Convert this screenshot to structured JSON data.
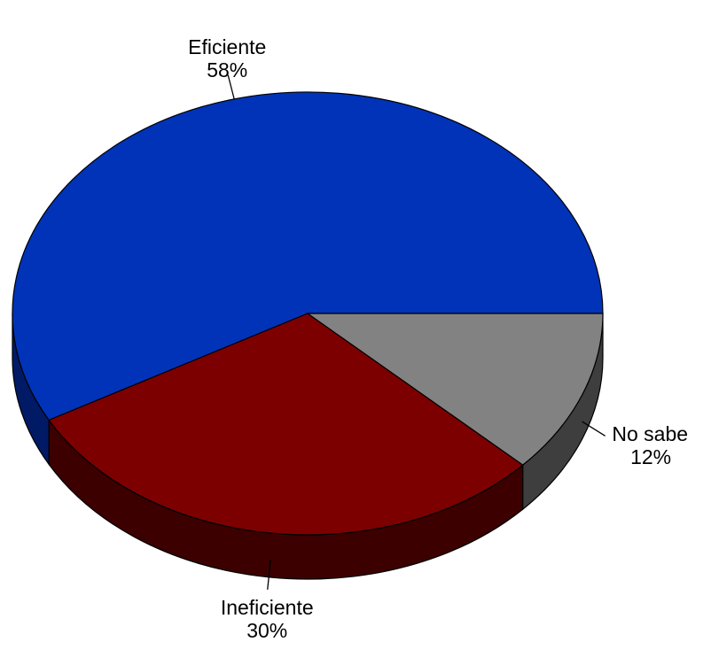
{
  "chart_data": {
    "type": "pie",
    "style": "3d",
    "slices": [
      {
        "name": "Eficiente",
        "value": 58,
        "value_label": "58%",
        "color": "#0033b8",
        "side_color": "#001a66"
      },
      {
        "name": "Ineficiente",
        "value": 30,
        "value_label": "30%",
        "color": "#7d0000",
        "side_color": "#3c0000"
      },
      {
        "name": "No sabe",
        "value": 12,
        "value_label": "12%",
        "color": "#828282",
        "side_color": "#3e3e3e"
      }
    ]
  }
}
